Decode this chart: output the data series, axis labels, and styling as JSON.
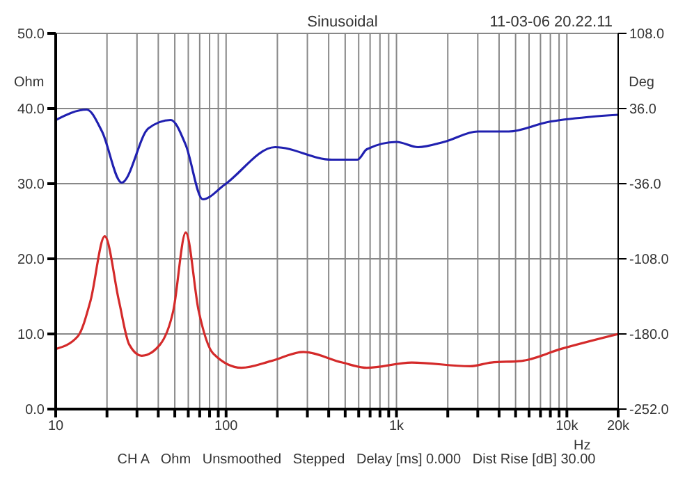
{
  "chart_data": {
    "type": "line",
    "title": "Sinusoidal",
    "xlabel": "Hz",
    "ylabel": "Ohm",
    "y2label": "Deg",
    "annotations": [
      "11-03-06 20.22.11",
      "CH A   Ohm   Unsmoothed   Stepped   Delay [ms] 0.000   Dist Rise [dB] 30.00"
    ],
    "log": "x",
    "grid": true,
    "marker": "none",
    "line_style": "solid",
    "xlim": [
      10,
      20000
    ],
    "xticks": [
      10,
      {
        "value": 20,
        "label": null
      },
      {
        "value": 30,
        "label": null
      },
      {
        "value": 40,
        "label": null
      },
      {
        "value": 50,
        "label": null
      },
      {
        "value": 60,
        "label": null
      },
      {
        "value": 70,
        "label": null
      },
      {
        "value": 80,
        "label": null
      },
      {
        "value": 90,
        "label": null
      },
      100,
      {
        "value": 200,
        "label": null
      },
      {
        "value": 300,
        "label": null
      },
      {
        "value": 400,
        "label": null
      },
      {
        "value": 500,
        "label": null
      },
      {
        "value": 600,
        "label": null
      },
      {
        "value": 700,
        "label": null
      },
      {
        "value": 800,
        "label": null
      },
      {
        "value": 900,
        "label": null
      },
      {
        "value": 1000,
        "label": "1k"
      },
      {
        "value": 2000,
        "label": null
      },
      {
        "value": 3000,
        "label": null
      },
      {
        "value": 4000,
        "label": null
      },
      {
        "value": 5000,
        "label": null
      },
      {
        "value": 6000,
        "label": null
      },
      {
        "value": 7000,
        "label": null
      },
      {
        "value": 8000,
        "label": null
      },
      {
        "value": 9000,
        "label": null
      },
      {
        "value": 10000,
        "label": "10k"
      },
      {
        "value": 20000,
        "label": "20k"
      }
    ],
    "ylim": [
      0,
      50
    ],
    "yticks": [
      {
        "value": 0,
        "label": "0.0"
      },
      {
        "value": 10,
        "label": "10.0"
      },
      {
        "value": 20,
        "label": "20.0"
      },
      {
        "value": 30,
        "label": "30.0"
      },
      {
        "value": 40,
        "label": "40.0"
      },
      {
        "value": 50,
        "label": "50.0"
      }
    ],
    "y2lim": [
      -252,
      108
    ],
    "y2ticks": [
      {
        "value": -252,
        "label": "-252.0"
      },
      {
        "value": -180,
        "label": "-180.0"
      },
      {
        "value": -108,
        "label": "-108.0"
      },
      {
        "value": -36,
        "label": "-36.0"
      },
      {
        "value": 36,
        "label": "36.0"
      },
      {
        "value": 108,
        "label": "108.0"
      }
    ],
    "series": [
      {
        "color": "#d42a2a",
        "x": [
          10,
          13.5,
          16,
          19.4,
          23.5,
          27,
          32,
          41,
          49,
          58,
          69,
          84,
          123,
          184,
          284,
          480,
          670,
          1230,
          2700,
          3600,
          5400,
          9200,
          20000
        ],
        "values": [
          8.0,
          9.7,
          14.4,
          23.0,
          14.4,
          8.6,
          7.1,
          8.6,
          13.1,
          23.5,
          13.1,
          7.4,
          5.5,
          6.4,
          7.6,
          6.2,
          5.5,
          6.2,
          5.7,
          6.2,
          6.4,
          8.0,
          10.0
        ]
      },
      {
        "color": "#2020b0",
        "axis": "y2",
        "x": [
          10,
          15.2,
          18.7,
          24.4,
          35,
          47.3,
          58,
          73,
          98,
          194,
          418,
          590,
          670,
          1000,
          1340,
          1900,
          3000,
          4560,
          7700,
          13700,
          20000
        ],
        "values": [
          25,
          35,
          14,
          -35,
          17,
          25,
          1,
          -51,
          -37,
          -1,
          -13,
          -13,
          -3,
          4,
          -1,
          4,
          14,
          14,
          23,
          28,
          30
        ]
      }
    ]
  }
}
